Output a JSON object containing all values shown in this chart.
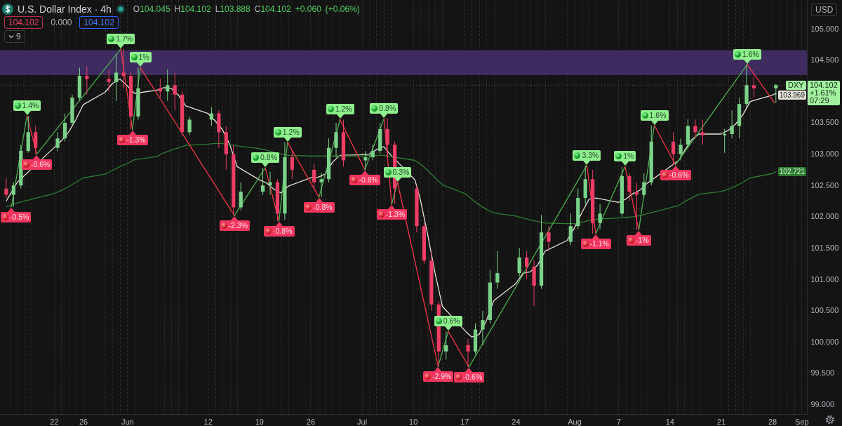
{
  "chart_data": {
    "type": "candlestick",
    "title": "U.S. Dollar Index · 4h",
    "subtitle": "O104.045 H104.102 L103.888 C104.102 +0.060 (+0.06%)",
    "x": [
      "--05-15T12:00",
      "--05-16T12:00",
      "--05-17T12:00",
      "--05-18T12:00",
      "--05-19T12:00",
      "--05-22T12:00",
      "--05-23T12:00",
      "--05-24T12:00",
      "--05-25T12:00",
      "--05-26T12:00",
      "--05-29T12:00",
      "--05-30T12:00",
      "--05-31T12:00",
      "--06-01T12:00",
      "--06-02T12:00",
      "--06-05T12:00",
      "--06-06T12:00",
      "--06-07T12:00",
      "--06-08T12:00",
      "--06-09T12:00",
      "--06-12T12:00",
      "--06-13T12:00",
      "--06-14T12:00",
      "--06-15T12:00",
      "--06-16T12:00",
      "--06-19T12:00",
      "--06-20T12:00",
      "--06-21T12:00",
      "--06-22T12:00",
      "--06-23T12:00",
      "--06-26T12:00",
      "--06-27T12:00",
      "--06-28T12:00",
      "--06-29T12:00",
      "--06-30T12:00",
      "--07-03T12:00",
      "--07-04T12:00",
      "--07-05T12:00",
      "--07-06T12:00",
      "--07-07T12:00",
      "--07-10T12:00",
      "--07-11T12:00",
      "--07-12T12:00",
      "--07-13T12:00",
      "--07-14T12:00",
      "--07-17T12:00",
      "--07-18T12:00",
      "--07-19T12:00",
      "--07-20T12:00",
      "--07-21T12:00",
      "--07-24T12:00",
      "--07-25T12:00",
      "--07-26T12:00",
      "--07-27T12:00",
      "--07-28T12:00",
      "--07-31T12:00",
      "--08-01T12:00",
      "--08-02T12:00",
      "--08-03T12:00",
      "--08-04T12:00",
      "--08-07T12:00",
      "--08-08T12:00",
      "--08-09T12:00",
      "--08-10T12:00",
      "--08-11T12:00",
      "--08-14T12:00",
      "--08-15T12:00",
      "--08-16T12:00",
      "--08-17T12:00",
      "--08-18T12:00",
      "--08-21T12:00",
      "--08-22T12:00",
      "--08-23T12:00",
      "--08-24T12:00",
      "--08-25T12:00",
      "--08-28T12:00"
    ],
    "ohlc": [
      [
        102.45,
        102.62,
        102.3,
        102.35
      ],
      [
        102.35,
        102.55,
        102.16,
        102.5
      ],
      [
        102.5,
        103.15,
        102.45,
        103.05
      ],
      [
        103.05,
        103.61,
        103.02,
        103.35
      ],
      [
        103.35,
        103.45,
        103.0,
        103.1
      ],
      [
        103.1,
        103.35,
        103.05,
        103.25
      ],
      [
        103.25,
        103.65,
        103.2,
        103.5
      ],
      [
        103.5,
        103.95,
        103.45,
        103.9
      ],
      [
        103.9,
        104.38,
        103.85,
        104.25
      ],
      [
        104.25,
        104.4,
        103.95,
        104.2
      ],
      [
        104.2,
        104.35,
        104.0,
        104.15
      ],
      [
        104.15,
        104.6,
        103.85,
        104.3
      ],
      [
        104.3,
        104.68,
        104.05,
        104.25
      ],
      [
        104.25,
        104.3,
        103.39,
        103.6
      ],
      [
        103.6,
        104.38,
        103.55,
        104.05
      ],
      [
        104.05,
        104.2,
        103.9,
        104.0
      ],
      [
        104.0,
        104.35,
        103.85,
        104.1
      ],
      [
        104.1,
        104.3,
        103.7,
        103.95
      ],
      [
        103.95,
        104.0,
        103.3,
        103.35
      ],
      [
        103.35,
        103.6,
        103.3,
        103.55
      ],
      [
        103.55,
        103.75,
        103.45,
        103.65
      ],
      [
        103.65,
        103.7,
        103.1,
        103.35
      ],
      [
        103.35,
        103.45,
        102.75,
        103.0
      ],
      [
        103.0,
        103.15,
        102.02,
        102.15
      ],
      [
        102.15,
        102.55,
        102.1,
        102.4
      ],
      [
        102.4,
        102.78,
        102.35,
        102.5
      ],
      [
        102.5,
        102.72,
        102.35,
        102.55
      ],
      [
        102.55,
        102.6,
        101.93,
        102.05
      ],
      [
        102.05,
        103.19,
        101.95,
        102.95
      ],
      [
        102.95,
        103.05,
        102.6,
        102.75
      ],
      [
        102.75,
        102.85,
        102.45,
        102.55
      ],
      [
        102.55,
        102.7,
        102.31,
        102.6
      ],
      [
        102.6,
        103.25,
        102.55,
        103.1
      ],
      [
        103.1,
        103.5,
        102.95,
        103.35
      ],
      [
        103.35,
        103.55,
        102.8,
        102.9
      ],
      [
        102.9,
        103.05,
        102.75,
        102.95
      ],
      [
        102.95,
        103.15,
        102.9,
        103.05
      ],
      [
        103.05,
        103.5,
        103.0,
        103.4
      ],
      [
        103.4,
        103.57,
        102.95,
        103.15
      ],
      [
        103.15,
        103.2,
        102.2,
        102.45
      ],
      [
        102.45,
        102.5,
        101.75,
        101.85
      ],
      [
        101.85,
        101.9,
        101.25,
        101.3
      ],
      [
        101.3,
        101.45,
        100.5,
        100.6
      ],
      [
        100.6,
        100.65,
        99.61,
        99.85
      ],
      [
        99.85,
        100.17,
        99.72,
        99.95
      ],
      [
        99.95,
        100.05,
        99.6,
        99.85
      ],
      [
        99.85,
        100.3,
        99.8,
        100.2
      ],
      [
        100.2,
        100.5,
        99.95,
        100.35
      ],
      [
        100.35,
        101.15,
        100.3,
        100.95
      ],
      [
        100.95,
        101.45,
        100.85,
        101.1
      ],
      [
        101.1,
        101.5,
        101.05,
        101.35
      ],
      [
        101.35,
        101.45,
        101.0,
        101.2
      ],
      [
        101.2,
        101.3,
        100.57,
        100.9
      ],
      [
        100.9,
        102.03,
        100.85,
        101.75
      ],
      [
        101.75,
        101.85,
        101.45,
        101.6
      ],
      [
        101.6,
        102.05,
        101.55,
        101.85
      ],
      [
        101.85,
        102.45,
        101.8,
        102.3
      ],
      [
        102.3,
        102.82,
        102.2,
        102.6
      ],
      [
        102.6,
        102.75,
        101.73,
        101.9
      ],
      [
        101.9,
        102.2,
        101.8,
        102.05
      ],
      [
        102.05,
        102.8,
        102.0,
        102.65
      ],
      [
        102.65,
        102.7,
        102.25,
        102.4
      ],
      [
        102.4,
        102.55,
        101.79,
        102.35
      ],
      [
        102.35,
        102.7,
        102.3,
        102.55
      ],
      [
        102.55,
        103.46,
        102.5,
        103.2
      ],
      [
        103.2,
        103.35,
        102.83,
        103.0
      ],
      [
        103.0,
        103.25,
        102.9,
        103.15
      ],
      [
        103.15,
        103.56,
        103.1,
        103.45
      ],
      [
        103.45,
        103.55,
        103.25,
        103.35
      ],
      [
        103.35,
        103.55,
        103.15,
        103.3
      ],
      [
        103.3,
        103.4,
        103.02,
        103.32
      ],
      [
        103.32,
        103.7,
        103.25,
        103.45
      ],
      [
        103.45,
        103.9,
        103.25,
        103.8
      ],
      [
        103.8,
        104.43,
        103.75,
        104.1
      ],
      [
        104.1,
        104.25,
        103.9,
        104.05
      ],
      [
        104.05,
        104.12,
        103.82,
        104.102
      ]
    ],
    "colors": [
      "#ee3d66",
      "#7bd389",
      "#7bd389",
      "#7bd389",
      "#ee3d66",
      "#7bd389",
      "#7bd389",
      "#7bd389",
      "#7bd389",
      "#ee3d66",
      "#ee3d66",
      "#7bd389",
      "#ee3d66",
      "#ee3d66",
      "#7bd389",
      "#ee3d66",
      "#7bd389",
      "#ee3d66",
      "#ee3d66",
      "#7bd389",
      "#7bd389",
      "#ee3d66",
      "#ee3d66",
      "#ee3d66",
      "#7bd389",
      "#7bd389",
      "#7bd389",
      "#ee3d66",
      "#7bd389",
      "#ee3d66",
      "#ee3d66",
      "#7bd389",
      "#7bd389",
      "#7bd389",
      "#ee3d66",
      "#7bd389",
      "#7bd389",
      "#7bd389",
      "#ee3d66",
      "#ee3d66",
      "#ee3d66",
      "#ee3d66",
      "#ee3d66",
      "#ee3d66",
      "#7bd389",
      "#ee3d66",
      "#7bd389",
      "#7bd389",
      "#7bd389",
      "#7bd389",
      "#7bd389",
      "#ee3d66",
      "#ee3d66",
      "#7bd389",
      "#ee3d66",
      "#7bd389",
      "#7bd389",
      "#7bd389",
      "#ee3d66",
      "#7bd389",
      "#7bd389",
      "#ee3d66",
      "#ee3d66",
      "#7bd389",
      "#7bd389",
      "#ee3d66",
      "#7bd389",
      "#7bd389",
      "#ee3d66",
      "#ee3d66",
      "#7bd389",
      "#7bd389",
      "#7bd389",
      "#7bd389",
      "#ee3d66",
      "#7bd389"
    ],
    "series": [
      {
        "type": "line",
        "color": "#e6e3d6",
        "x": [
          "--05-15T12:00",
          "--05-16T00:00",
          "--05-17T00:00",
          "--05-22T00:00",
          "--05-23T00:00",
          "--05-24T00:00",
          "--05-25T00:00",
          "--05-26T00:00",
          "--05-29T00:00",
          "--05-30T00:00",
          "--05-31T00:00",
          "--06-01T00:00",
          "--06-02T00:00",
          "--06-05T00:00",
          "--06-06T00:00",
          "--06-07T00:00",
          "--06-08T00:00",
          "--06-09T00:00",
          "--06-12T00:00",
          "--06-13T00:00",
          "--06-14T00:00",
          "--06-15T00:00",
          "--06-16T00:00",
          "--06-19T00:00",
          "--06-20T00:00",
          "--06-21T00:00",
          "--06-22T00:00",
          "--06-23T00:00",
          "--06-26T00:00",
          "--06-27T00:00",
          "--06-28T00:00",
          "--06-29T00:00",
          "--06-30T00:00",
          "--07-03T00:00",
          "--07-04T00:00",
          "--07-05T00:00",
          "--07-06T00:00",
          "--07-07T00:00",
          "--07-10T06:00",
          "--07-11T00:00",
          "--07-12T00:00",
          "--07-13T00:00",
          "--07-14T00:00",
          "--07-17T06:00",
          "--07-18T00:00",
          "--07-19T00:00",
          "--07-20T00:00",
          "--07-21T00:00",
          "--07-24T00:00",
          "--07-25T00:00",
          "--07-26T00:00",
          "--07-27T00:00",
          "--07-28T00:00",
          "--07-31T00:00",
          "--08-01T00:00",
          "--08-02T00:00",
          "--08-03T00:00",
          "--08-04T00:00",
          "--08-07T00:00",
          "--08-08T00:00",
          "--08-09T00:00",
          "--08-10T00:00",
          "--08-11T00:00",
          "--08-15T06:00",
          "--08-16T00:00",
          "--08-17T00:00",
          "--08-18T00:00",
          "--08-21T00:00",
          "--08-22T00:00",
          "--08-23T00:00",
          "--08-24T00:00",
          "--08-25T00:00",
          "--08-28T00:00",
          "--08-28T12:00"
        ],
        "values": [
          102.25,
          102.35,
          102.55,
          103.1,
          103.21,
          103.35,
          103.55,
          103.79,
          103.99,
          104.13,
          104.2,
          104.09,
          103.97,
          104.02,
          104.06,
          104.05,
          103.94,
          103.77,
          103.65,
          103.53,
          103.39,
          103.15,
          102.8,
          102.59,
          102.54,
          102.44,
          102.38,
          102.49,
          102.62,
          102.63,
          102.68,
          102.87,
          102.98,
          102.99,
          103.0,
          103.07,
          103.12,
          102.98,
          102.59,
          102.27,
          101.71,
          101.1,
          100.57,
          100.16,
          100.08,
          100.12,
          100.34,
          100.66,
          100.93,
          101.1,
          101.12,
          101.23,
          101.45,
          101.62,
          101.82,
          102.06,
          102.28,
          102.3,
          102.23,
          102.28,
          102.37,
          102.43,
          102.54,
          102.9,
          103.05,
          103.23,
          103.32,
          103.32,
          103.38,
          103.48,
          103.63,
          103.84,
          103.94,
          103.969
        ],
        "value_labels": [
          null,
          null,
          null,
          null,
          null,
          null,
          null,
          null,
          null,
          null,
          null,
          null,
          null,
          null,
          null,
          null,
          null,
          null,
          null,
          null,
          null,
          null,
          null,
          null,
          null,
          null,
          null,
          null,
          null,
          null,
          null,
          null,
          null,
          null,
          null,
          null,
          null,
          null,
          null,
          null,
          null,
          null,
          null,
          null,
          null,
          null,
          null,
          null,
          null,
          null,
          null,
          null,
          null,
          null,
          null,
          null,
          null,
          null,
          null,
          null,
          null,
          null,
          null,
          null,
          null,
          null,
          null,
          null,
          null,
          null,
          null,
          null,
          null,
          "103.969"
        ]
      },
      {
        "type": "line",
        "color": "#2e7d32",
        "x": [
          "--05-15T12:00",
          "--05-16T00:00",
          "--05-17T00:00",
          "--05-22T00:00",
          "--05-23T00:00",
          "--05-24T00:00",
          "--05-25T00:00",
          "--05-26T00:00",
          "--05-29T00:00",
          "--05-30T00:00",
          "--05-31T00:00",
          "--06-01T00:00",
          "--06-02T00:00",
          "--06-05T00:00",
          "--06-06T00:00",
          "--06-07T00:00",
          "--06-08T00:00",
          "--06-09T00:00",
          "--06-12T00:00",
          "--06-13T00:00",
          "--06-14T00:00",
          "--06-15T00:00",
          "--06-16T00:00",
          "--06-19T00:00",
          "--06-20T00:00",
          "--06-21T00:00",
          "--06-22T00:00",
          "--06-23T00:00",
          "--06-26T00:00",
          "--06-27T00:00",
          "--06-28T00:00",
          "--06-29T00:00",
          "--06-30T00:00",
          "--07-03T00:00",
          "--07-04T00:00",
          "--07-05T00:00",
          "--07-06T00:00",
          "--07-07T00:00",
          "--07-10T06:00",
          "--07-11T00:00",
          "--07-12T00:00",
          "--07-13T00:00",
          "--07-14T00:00",
          "--07-17T06:00",
          "--07-18T00:00",
          "--07-19T00:00",
          "--07-20T00:00",
          "--07-21T00:00",
          "--07-24T00:00",
          "--07-25T00:00",
          "--07-26T00:00",
          "--07-27T00:00",
          "--07-28T00:00",
          "--07-31T00:00",
          "--08-01T00:00",
          "--08-02T00:00",
          "--08-03T00:00",
          "--08-04T00:00",
          "--08-07T00:00",
          "--08-08T00:00",
          "--08-09T00:00",
          "--08-10T00:00",
          "--08-11T00:00",
          "--08-15T06:00",
          "--08-16T00:00",
          "--08-17T00:00",
          "--08-18T00:00",
          "--08-21T00:00",
          "--08-22T00:00",
          "--08-23T00:00",
          "--08-24T00:00",
          "--08-25T00:00",
          "--08-28T00:00",
          "--08-28T12:00"
        ],
        "values": [
          102.16,
          102.18,
          102.22,
          102.37,
          102.42,
          102.48,
          102.55,
          102.62,
          102.68,
          102.74,
          102.8,
          102.85,
          102.91,
          102.96,
          103.02,
          103.06,
          103.1,
          103.14,
          103.16,
          103.17,
          103.17,
          103.15,
          103.13,
          103.09,
          103.06,
          103.03,
          103.0,
          102.98,
          102.97,
          102.97,
          102.97,
          102.97,
          102.97,
          102.97,
          102.98,
          102.98,
          102.98,
          102.96,
          102.9,
          102.84,
          102.74,
          102.62,
          102.51,
          102.36,
          102.28,
          102.19,
          102.12,
          102.06,
          102.01,
          101.98,
          101.95,
          101.92,
          101.9,
          101.89,
          101.89,
          101.91,
          101.94,
          101.96,
          101.98,
          101.99,
          102.0,
          102.02,
          102.05,
          102.18,
          102.24,
          102.3,
          102.36,
          102.4,
          102.44,
          102.49,
          102.55,
          102.62,
          102.69,
          102.721
        ],
        "value_labels": [
          null,
          null,
          null,
          null,
          null,
          null,
          null,
          null,
          null,
          null,
          null,
          null,
          null,
          null,
          null,
          null,
          null,
          null,
          null,
          null,
          null,
          null,
          null,
          null,
          null,
          null,
          null,
          null,
          null,
          null,
          null,
          null,
          null,
          null,
          null,
          null,
          null,
          null,
          null,
          null,
          null,
          null,
          null,
          null,
          null,
          null,
          null,
          null,
          null,
          null,
          null,
          null,
          null,
          null,
          null,
          null,
          null,
          null,
          null,
          null,
          null,
          null,
          null,
          null,
          null,
          null,
          null,
          null,
          null,
          null,
          null,
          null,
          null,
          "102.721"
        ]
      },
      {
        "type": "line",
        "color": "#4caf50",
        "x": [
          "--05-16T05:00",
          "--05-18T08:00"
        ],
        "values": [
          102.16,
          103.61
        ]
      },
      {
        "type": "line",
        "color": "#f23645",
        "x": [
          "--05-18T08:00",
          "--05-19T16:00"
        ],
        "values": [
          103.61,
          103.0
        ]
      },
      {
        "type": "line",
        "color": "#4caf50",
        "x": [
          "--05-19T16:00",
          "--05-31T03:00"
        ],
        "values": [
          103.0,
          104.68
        ]
      },
      {
        "type": "line",
        "color": "#f23645",
        "x": [
          "--05-31T03:00",
          "--06-01T17:00"
        ],
        "values": [
          104.68,
          103.39
        ]
      },
      {
        "type": "line",
        "color": "#4caf50",
        "x": [
          "--06-01T17:00",
          "--06-02T19:00"
        ],
        "values": [
          103.39,
          104.38
        ]
      },
      {
        "type": "line",
        "color": "#f23645",
        "x": [
          "--06-02T19:00",
          "--06-15T15:00"
        ],
        "values": [
          104.38,
          102.02
        ]
      },
      {
        "type": "line",
        "color": "#4caf50",
        "x": [
          "--06-15T15:00",
          "--06-19T20:00"
        ],
        "values": [
          102.02,
          102.78
        ]
      },
      {
        "type": "line",
        "color": "#f23645",
        "x": [
          "--06-19T20:00",
          "--06-21T17:00"
        ],
        "values": [
          102.78,
          101.93
        ]
      },
      {
        "type": "line",
        "color": "#4caf50",
        "x": [
          "--06-21T17:00",
          "--06-22T21:00"
        ],
        "values": [
          101.93,
          103.19
        ]
      },
      {
        "type": "line",
        "color": "#f23645",
        "x": [
          "--06-22T21:00",
          "--06-27T04:00"
        ],
        "values": [
          103.19,
          102.31
        ]
      },
      {
        "type": "line",
        "color": "#4caf50",
        "x": [
          "--06-27T04:00",
          "--06-30T01:00"
        ],
        "values": [
          102.31,
          103.55
        ]
      },
      {
        "type": "line",
        "color": "#f23645",
        "x": [
          "--06-30T01:00",
          "--07-03T10:00"
        ],
        "values": [
          103.55,
          102.75
        ]
      },
      {
        "type": "line",
        "color": "#4caf50",
        "x": [
          "--07-03T10:00",
          "--07-06T01:00"
        ],
        "values": [
          102.75,
          103.57
        ]
      },
      {
        "type": "line",
        "color": "#f23645",
        "x": [
          "--07-06T01:00",
          "--07-07T02:00"
        ],
        "values": [
          103.57,
          102.2
        ]
      },
      {
        "type": "line",
        "color": "#4caf50",
        "x": [
          "--07-07T02:00",
          "--07-07T21:00"
        ],
        "values": [
          102.2,
          102.55
        ]
      },
      {
        "type": "line",
        "color": "#f23645",
        "x": [
          "--07-07T21:00",
          "--07-13T10:00"
        ],
        "values": [
          102.55,
          99.61
        ]
      },
      {
        "type": "line",
        "color": "#4caf50",
        "x": [
          "--07-13T10:00",
          "--07-14T19:00"
        ],
        "values": [
          99.61,
          100.17
        ]
      },
      {
        "type": "line",
        "color": "#f23645",
        "x": [
          "--07-14T19:00",
          "--07-17T15:00"
        ],
        "values": [
          100.17,
          99.6
        ]
      },
      {
        "type": "line",
        "color": "#4caf50",
        "x": [
          "--07-17T15:00",
          "--08-02T17:00"
        ],
        "values": [
          99.6,
          102.82
        ]
      },
      {
        "type": "line",
        "color": "#f23645",
        "x": [
          "--08-02T17:00",
          "--08-03T22:00"
        ],
        "values": [
          102.82,
          101.73
        ]
      },
      {
        "type": "line",
        "color": "#4caf50",
        "x": [
          "--08-03T22:00",
          "--08-07T22:00"
        ],
        "values": [
          101.73,
          102.8
        ]
      },
      {
        "type": "line",
        "color": "#f23645",
        "x": [
          "--08-07T22:00",
          "--08-09T19:00"
        ],
        "values": [
          102.8,
          101.79
        ]
      },
      {
        "type": "line",
        "color": "#4caf50",
        "x": [
          "--08-09T19:00",
          "--08-11T22:00"
        ],
        "values": [
          101.79,
          103.46
        ]
      },
      {
        "type": "line",
        "color": "#f23645",
        "x": [
          "--08-11T22:00",
          "--08-14T19:00"
        ],
        "values": [
          103.46,
          102.83
        ]
      },
      {
        "type": "line",
        "color": "#4caf50",
        "x": [
          "--08-14T19:00",
          "--08-24T14:00"
        ],
        "values": [
          102.83,
          104.43
        ]
      },
      {
        "type": "line",
        "color": "#f23645",
        "x": [
          "--08-24T14:00",
          "--08-28T07:00"
        ],
        "values": [
          104.43,
          103.82
        ]
      }
    ],
    "xlim": [
      "--05-15T03:00",
      "--09-01T06:00"
    ],
    "xticks": [
      {
        "value": "--05-16",
        "label": null
      },
      {
        "value": "--05-17",
        "label": null
      },
      {
        "value": "--05-18",
        "label": null
      },
      {
        "value": "--05-19",
        "label": null
      },
      {
        "value": "--05-22",
        "label": "22"
      },
      {
        "value": "--05-23",
        "label": null
      },
      {
        "value": "--05-24",
        "label": null
      },
      {
        "value": "--05-25",
        "label": null
      },
      {
        "value": "--05-26",
        "label": "26"
      },
      {
        "value": "--05-29",
        "label": null
      },
      {
        "value": "--05-30",
        "label": null
      },
      {
        "value": "--05-31",
        "label": null
      },
      {
        "value": "--06-01",
        "label": "Jun"
      },
      {
        "value": "--06-02",
        "label": null
      },
      {
        "value": "--06-05",
        "label": null
      },
      {
        "value": "--06-06",
        "label": null
      },
      {
        "value": "--06-07",
        "label": null
      },
      {
        "value": "--06-08",
        "label": null
      },
      {
        "value": "--06-09",
        "label": null
      },
      {
        "value": "--06-12",
        "label": "12"
      },
      {
        "value": "--06-13",
        "label": null
      },
      {
        "value": "--06-14",
        "label": null
      },
      {
        "value": "--06-15",
        "label": null
      },
      {
        "value": "--06-16",
        "label": null
      },
      {
        "value": "--06-19",
        "label": "19"
      },
      {
        "value": "--06-20",
        "label": null
      },
      {
        "value": "--06-21",
        "label": null
      },
      {
        "value": "--06-22",
        "label": null
      },
      {
        "value": "--06-23",
        "label": null
      },
      {
        "value": "--06-26",
        "label": "26"
      },
      {
        "value": "--06-27",
        "label": null
      },
      {
        "value": "--06-28",
        "label": null
      },
      {
        "value": "--06-29",
        "label": null
      },
      {
        "value": "--06-30",
        "label": null
      },
      {
        "value": "--07-03",
        "label": "Jul"
      },
      {
        "value": "--07-04",
        "label": null
      },
      {
        "value": "--07-05",
        "label": null
      },
      {
        "value": "--07-06",
        "label": null
      },
      {
        "value": "--07-07",
        "label": null
      },
      {
        "value": "--07-10",
        "label": "10"
      },
      {
        "value": "--07-11",
        "label": null
      },
      {
        "value": "--07-12",
        "label": null
      },
      {
        "value": "--07-13",
        "label": null
      },
      {
        "value": "--07-14",
        "label": null
      },
      {
        "value": "--07-17",
        "label": "17"
      },
      {
        "value": "--07-18",
        "label": null
      },
      {
        "value": "--07-19",
        "label": null
      },
      {
        "value": "--07-20",
        "label": null
      },
      {
        "value": "--07-21",
        "label": null
      },
      {
        "value": "--07-24",
        "label": "24"
      },
      {
        "value": "--07-25",
        "label": null
      },
      {
        "value": "--07-26",
        "label": null
      },
      {
        "value": "--07-27",
        "label": null
      },
      {
        "value": "--07-28",
        "label": null
      },
      {
        "value": "--07-31",
        "label": null
      },
      {
        "value": "--08-01",
        "label": "Aug"
      },
      {
        "value": "--08-02",
        "label": null
      },
      {
        "value": "--08-03",
        "label": null
      },
      {
        "value": "--08-04",
        "label": null
      },
      {
        "value": "--08-07",
        "label": "7"
      },
      {
        "value": "--08-08",
        "label": null
      },
      {
        "value": "--08-09",
        "label": null
      },
      {
        "value": "--08-10",
        "label": null
      },
      {
        "value": "--08-11",
        "label": null
      },
      {
        "value": "--08-14",
        "label": "14"
      },
      {
        "value": "--08-15",
        "label": null
      },
      {
        "value": "--08-16",
        "label": null
      },
      {
        "value": "--08-17",
        "label": null
      },
      {
        "value": "--08-18",
        "label": null
      },
      {
        "value": "--08-21",
        "label": "21"
      },
      {
        "value": "--08-22",
        "label": null
      },
      {
        "value": "--08-23",
        "label": null
      },
      {
        "value": "--08-24",
        "label": null
      },
      {
        "value": "--08-25",
        "label": null
      },
      {
        "value": "--08-28",
        "label": "28"
      },
      {
        "value": "--08-29",
        "label": null
      },
      {
        "value": "--08-30",
        "label": null
      },
      {
        "value": "--08-31",
        "label": null
      },
      {
        "value": "--09-01",
        "label": "Sep"
      }
    ],
    "ylim": [
      98.85,
      105.46
    ],
    "yticks": [
      {
        "value": 99,
        "label": "99.000"
      },
      {
        "value": 99.5,
        "label": "99.500"
      },
      {
        "value": 100,
        "label": "100.000"
      },
      {
        "value": 100.5,
        "label": "100.500"
      },
      {
        "value": 101,
        "label": "101.000"
      },
      {
        "value": 101.5,
        "label": "101.500"
      },
      {
        "value": 102,
        "label": "102.000"
      },
      {
        "value": 102.5,
        "label": "102.500"
      },
      {
        "value": 103,
        "label": "103.000"
      },
      {
        "value": 103.5,
        "label": "103.500"
      },
      {
        "value": 104.5,
        "label": "104.500"
      },
      {
        "value": 105,
        "label": "105.000"
      }
    ],
    "grid": "x",
    "bands": [
      {
        "axis": "y",
        "from": 104.26,
        "to": 104.66,
        "color": "#3e2c60"
      }
    ],
    "ref_lines": [
      {
        "axis": "y",
        "value": 104.102,
        "label": "DXY",
        "color": "#55665a",
        "line_style": "dotted"
      }
    ],
    "annotations": [
      "104.102",
      "0.000",
      "104.102",
      "9",
      "USD",
      "+1.61%",
      "07:29",
      {
        "text": "-0.5%",
        "x": "--05-16T05:00",
        "y": 102.16
      },
      {
        "text": "1.4%",
        "x": "--05-18T08:00",
        "y": 103.61
      },
      {
        "text": "-0.6%",
        "x": "--05-19T16:00",
        "y": 103.0
      },
      {
        "text": "1.7%",
        "x": "--05-31T03:00",
        "y": 104.68
      },
      {
        "text": "-1.3%",
        "x": "--06-01T17:00",
        "y": 103.39
      },
      {
        "text": "1%",
        "x": "--06-02T19:00",
        "y": 104.38
      },
      {
        "text": "-2.3%",
        "x": "--06-15T15:00",
        "y": 102.02
      },
      {
        "text": "0.8%",
        "x": "--06-19T20:00",
        "y": 102.78
      },
      {
        "text": "-0.8%",
        "x": "--06-21T17:00",
        "y": 101.93
      },
      {
        "text": "1.2%",
        "x": "--06-22T21:00",
        "y": 103.19
      },
      {
        "text": "-0.8%",
        "x": "--06-27T04:00",
        "y": 102.31
      },
      {
        "text": "1.2%",
        "x": "--06-30T01:00",
        "y": 103.55
      },
      {
        "text": "-0.8%",
        "x": "--07-03T10:00",
        "y": 102.75
      },
      {
        "text": "0.8%",
        "x": "--07-06T01:00",
        "y": 103.57
      },
      {
        "text": "-1.3%",
        "x": "--07-07T02:00",
        "y": 102.2
      },
      {
        "text": "0.3%",
        "x": "--07-07T21:00",
        "y": 102.55
      },
      {
        "text": "-2.9%",
        "x": "--07-13T10:00",
        "y": 99.61
      },
      {
        "text": "0.6%",
        "x": "--07-14T19:00",
        "y": 100.17
      },
      {
        "text": "-0.6%",
        "x": "--07-17T15:00",
        "y": 99.6
      },
      {
        "text": "3.3%",
        "x": "--08-02T17:00",
        "y": 102.82
      },
      {
        "text": "-1.1%",
        "x": "--08-03T22:00",
        "y": 101.73
      },
      {
        "text": "1%",
        "x": "--08-07T22:00",
        "y": 102.8
      },
      {
        "text": "-1%",
        "x": "--08-09T19:00",
        "y": 101.79
      },
      {
        "text": "1.6%",
        "x": "--08-11T22:00",
        "y": 103.46
      },
      {
        "text": "-0.6%",
        "x": "--08-14T19:00",
        "y": 102.83
      },
      {
        "text": "1.6%",
        "x": "--08-24T14:00",
        "y": 104.43
      }
    ]
  }
}
